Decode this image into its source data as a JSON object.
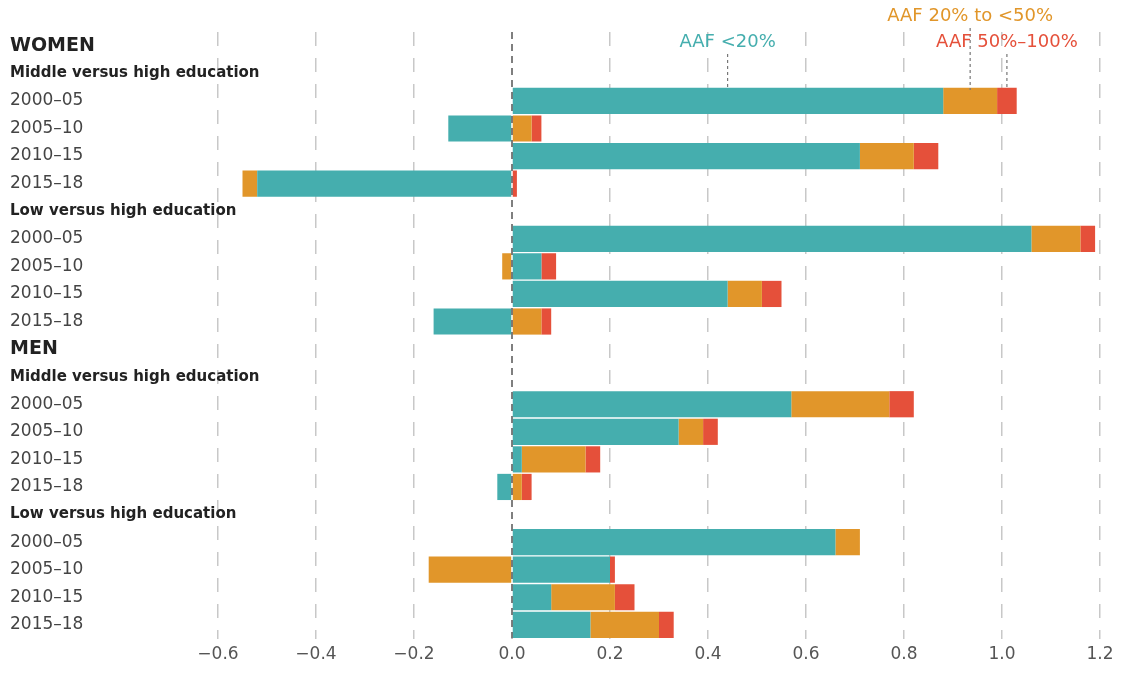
{
  "chart_data": {
    "type": "bar",
    "orientation": "horizontal",
    "stacked": true,
    "grid": "x",
    "categories": [
      "WOMEN",
      "Middle versus high education",
      "2000–05",
      "2005–10",
      "2010–15",
      "2015–18",
      "Low versus high education",
      "2000–05",
      "2005–10",
      "2010–15",
      "2015–18",
      "MEN",
      "Middle versus high education",
      "2000–05",
      "2005–10",
      "2010–15",
      "2015–18",
      "Low versus high education",
      "2000–05",
      "2005–10",
      "2010–15",
      "2015–18"
    ],
    "series": [
      {
        "name": "AAF <20%",
        "color": "#45aeae",
        "values": [
          null,
          null,
          0.88,
          -0.13,
          0.71,
          -0.52,
          null,
          1.06,
          0.06,
          0.44,
          -0.16,
          null,
          null,
          0.57,
          0.34,
          0.02,
          -0.03,
          null,
          0.66,
          0.2,
          0.08,
          0.16
        ]
      },
      {
        "name": "AAF 20% to <50%",
        "color": "#e1962a",
        "values": [
          null,
          null,
          0.11,
          0.04,
          0.11,
          -0.03,
          null,
          0.1,
          -0.02,
          0.07,
          0.06,
          null,
          null,
          0.2,
          0.05,
          0.13,
          0.02,
          null,
          0.05,
          -0.17,
          0.13,
          0.14
        ]
      },
      {
        "name": "AAF 50%–100%",
        "color": "#e5503a",
        "values": [
          null,
          null,
          0.04,
          0.02,
          0.05,
          0.01,
          null,
          0.03,
          0.03,
          0.04,
          0.02,
          null,
          null,
          0.05,
          0.03,
          0.03,
          0.02,
          null,
          null,
          0.01,
          0.04,
          0.03
        ]
      }
    ],
    "ref_lines": [
      {
        "axis": "x",
        "value": 0,
        "color": "#555555",
        "line_style": "dashed"
      }
    ],
    "xlim": [
      -0.6,
      1.2
    ],
    "xticks": [
      {
        "value": -0.6,
        "label": "−0.6"
      },
      {
        "value": -0.4,
        "label": "−0.4"
      },
      {
        "value": -0.2,
        "label": "−0.2"
      },
      {
        "value": 0,
        "label": "0.0"
      },
      0.2,
      0.4,
      0.6,
      0.8,
      {
        "value": 1,
        "label": "1.0"
      },
      1.2
    ]
  }
}
